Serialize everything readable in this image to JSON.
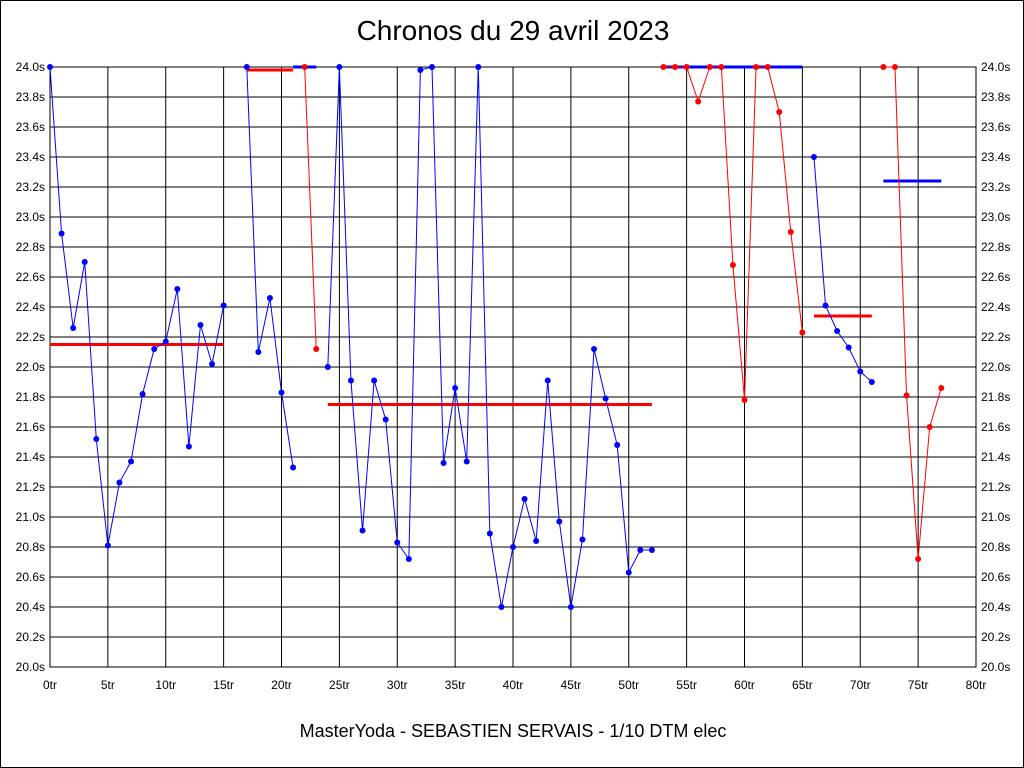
{
  "chart_data": {
    "type": "line",
    "title": "Chronos du 29 avril 2023",
    "caption": "MasterYoda - SEBASTIEN SERVAIS - 1/10 DTM elec",
    "xlim": [
      0,
      80
    ],
    "ylim": [
      20.0,
      24.0
    ],
    "x_ticks": [
      0,
      5,
      10,
      15,
      20,
      25,
      30,
      35,
      40,
      45,
      50,
      55,
      60,
      65,
      70,
      75,
      80
    ],
    "x_tick_suffix": "tr",
    "y_ticks": [
      20.0,
      20.2,
      20.4,
      20.6,
      20.8,
      21.0,
      21.2,
      21.4,
      21.6,
      21.8,
      22.0,
      22.2,
      22.4,
      22.6,
      22.8,
      23.0,
      23.2,
      23.4,
      23.6,
      23.8,
      24.0
    ],
    "y_tick_suffix": "s",
    "grid": true,
    "series": [
      {
        "color": "#0000ff",
        "x": [
          0,
          1,
          2,
          3,
          4,
          5,
          6,
          7,
          8,
          9,
          10,
          11,
          12,
          13,
          14,
          15
        ],
        "y": [
          24.0,
          22.89,
          22.26,
          22.7,
          21.52,
          20.81,
          21.23,
          21.37,
          21.82,
          22.12,
          22.17,
          22.52,
          21.47,
          22.28,
          22.02,
          22.41
        ]
      },
      {
        "color": "#0000ff",
        "x": [
          17,
          18,
          19,
          20,
          21
        ],
        "y": [
          24.0,
          22.1,
          22.46,
          21.83,
          21.33
        ]
      },
      {
        "color": "#ff0000",
        "x": [
          22,
          23
        ],
        "y": [
          24.0,
          22.12
        ]
      },
      {
        "color": "#0000ff",
        "x": [
          24,
          25,
          26,
          27,
          28,
          29,
          30,
          31,
          32,
          33,
          34,
          35,
          36,
          37,
          38,
          39,
          40,
          41,
          42,
          43,
          44,
          45,
          46,
          47,
          48,
          49,
          50,
          51,
          52
        ],
        "y": [
          22.0,
          24.0,
          21.91,
          20.91,
          21.91,
          21.65,
          20.83,
          20.72,
          23.98,
          24.0,
          21.36,
          21.86,
          21.37,
          24.0,
          20.89,
          20.4,
          20.8,
          21.12,
          20.84,
          21.91,
          20.97,
          20.4,
          20.85,
          22.12,
          21.79,
          21.48,
          20.63,
          20.78,
          20.78
        ]
      },
      {
        "color": "#ff0000",
        "x": [
          53,
          54,
          55,
          56,
          57,
          58,
          59,
          60,
          61,
          62,
          63,
          64,
          65
        ],
        "y": [
          24.0,
          24.0,
          24.0,
          23.77,
          24.0,
          24.0,
          22.68,
          21.78,
          24.0,
          24.0,
          23.7,
          22.9,
          22.23
        ]
      },
      {
        "color": "#0000ff",
        "x": [
          66,
          67,
          68,
          69,
          70,
          71
        ],
        "y": [
          23.4,
          22.41,
          22.24,
          22.13,
          21.97,
          21.9
        ]
      },
      {
        "color": "#ff0000",
        "x": [
          72,
          73,
          74,
          75,
          76,
          77
        ],
        "y": [
          24.0,
          24.0,
          21.81,
          20.72,
          21.6,
          21.86
        ]
      }
    ],
    "averages": [
      {
        "color": "#ff0000",
        "x_from": 0,
        "x_to": 15,
        "y": 22.15
      },
      {
        "color": "#ff0000",
        "x_from": 17,
        "x_to": 21,
        "y": 23.98
      },
      {
        "color": "#0000ff",
        "x_from": 21,
        "x_to": 23,
        "y": 24.0
      },
      {
        "color": "#ff0000",
        "x_from": 24,
        "x_to": 52,
        "y": 21.75
      },
      {
        "color": "#0000ff",
        "x_from": 53,
        "x_to": 65,
        "y": 24.0
      },
      {
        "color": "#ff0000",
        "x_from": 66,
        "x_to": 71,
        "y": 22.34
      },
      {
        "color": "#0000ff",
        "x_from": 72,
        "x_to": 77,
        "y": 23.24
      }
    ]
  }
}
